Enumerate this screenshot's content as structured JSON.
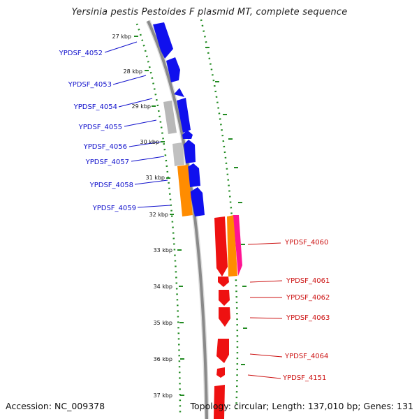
{
  "title": "Yersinia pestis Pestoides F plasmid MT, complete sequence",
  "accession": "Accession: NC_009378",
  "topology": "Topology: circular; Length: 137,010 bp; Genes: 131",
  "colors": {
    "forward": "#1010ee",
    "reverse": "#ee1111",
    "gray": "#b8b8b8",
    "orange": "#ff8c00",
    "pink": "#ff1493",
    "tick_green": "#228b22",
    "backbone": "#8a8a8a"
  },
  "ticks": [
    "27 kbp",
    "28 kbp",
    "29 kbp",
    "30 kbp",
    "31 kbp",
    "32 kbp",
    "33 kbp",
    "34 kbp",
    "35 kbp",
    "36 kbp",
    "37 kbp"
  ],
  "forward_genes": [
    "YPDSF_4052",
    "YPDSF_4053",
    "YPDSF_4054",
    "YPDSF_4055",
    "YPDSF_4056",
    "YPDSF_4057",
    "YPDSF_4058",
    "YPDSF_4059"
  ],
  "reverse_genes": [
    "YPDSF_4060",
    "YPDSF_4061",
    "YPDSF_4062",
    "YPDSF_4063",
    "YPDSF_4064",
    "YPDSF_4151"
  ]
}
